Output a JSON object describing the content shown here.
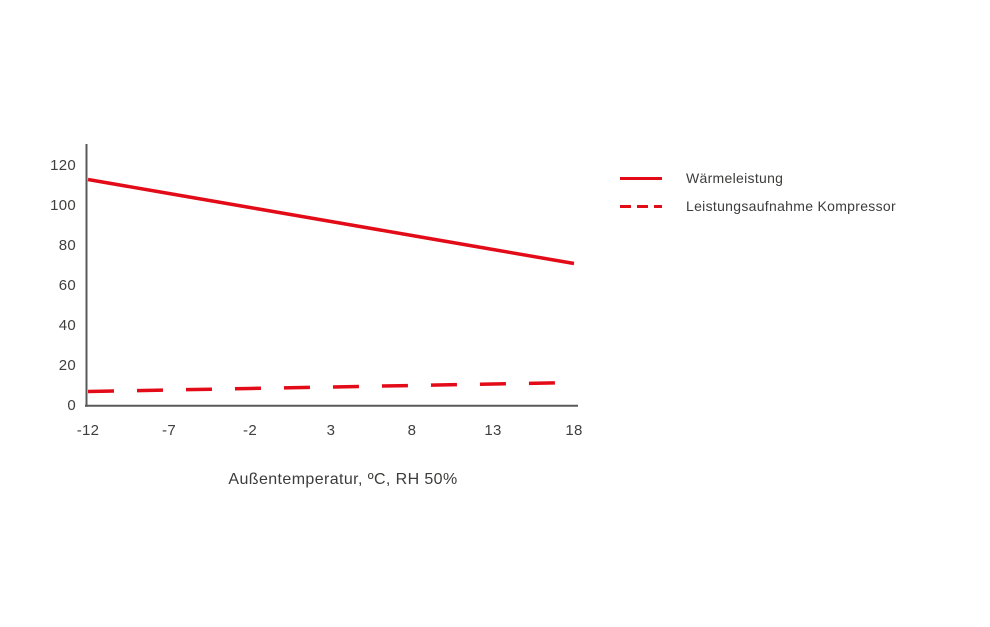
{
  "chart_data": {
    "type": "line",
    "x": [
      -12,
      -7,
      -2,
      3,
      8,
      13,
      18
    ],
    "series": [
      {
        "name": "Wärmeleistung",
        "style": "solid",
        "values": [
          113,
          106,
          99,
          92,
          85,
          78,
          71
        ]
      },
      {
        "name": "Leistungsaufnahme Kompressor",
        "style": "dashed",
        "values": [
          7,
          7.75,
          8.5,
          9.25,
          10,
          10.75,
          11.5
        ]
      }
    ],
    "title": "",
    "xlabel": "Außentemperatur, ºC, RH 50%",
    "ylabel": "",
    "xlim": [
      -12,
      18
    ],
    "ylim": [
      0,
      120
    ],
    "x_ticks": [
      -12,
      -7,
      -2,
      3,
      8,
      13,
      18
    ],
    "y_ticks": [
      0,
      20,
      40,
      60,
      80,
      100,
      120
    ],
    "grid": false,
    "legend_position": "right",
    "line_color": "#e30b17",
    "axis_color": "#58595b",
    "text_color": "#3c3c3b"
  }
}
